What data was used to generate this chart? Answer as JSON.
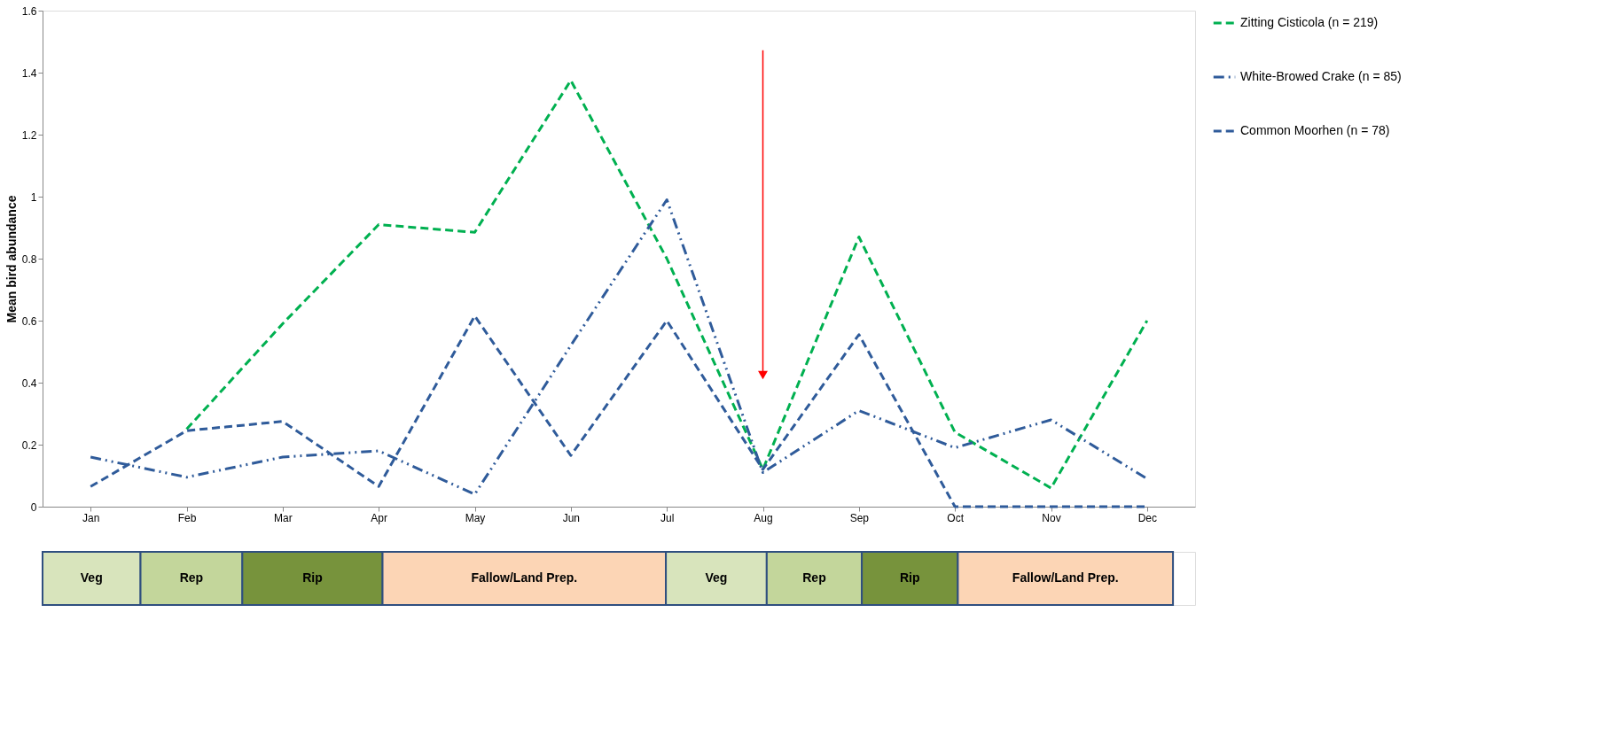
{
  "chart_data": {
    "type": "line",
    "ylabel": "Mean bird abundance",
    "categories": [
      "Jan",
      "Feb",
      "Mar",
      "Apr",
      "May",
      "Jun",
      "Jul",
      "Aug",
      "Sep",
      "Oct",
      "Nov",
      "Dec"
    ],
    "series": [
      {
        "name": "Zitting Cisticola (n = 219)",
        "color": "#00b050",
        "line_style": "dashed",
        "values": [
          null,
          0.25,
          0.59,
          0.91,
          0.885,
          1.375,
          0.8,
          0.12,
          0.87,
          0.24,
          0.06,
          0.6
        ]
      },
      {
        "name": "White-Browed Crake (n = 85)",
        "color": "#2f5b9a",
        "line_style": "dashdot",
        "values": [
          0.16,
          0.095,
          0.16,
          0.18,
          0.04,
          0.52,
          0.99,
          0.11,
          0.31,
          0.19,
          0.28,
          0.09
        ]
      },
      {
        "name": "Common Moorhen (n = 78)",
        "color": "#2f5b9a",
        "line_style": "dashed",
        "values": [
          0.065,
          0.245,
          0.275,
          0.065,
          0.615,
          0.165,
          0.6,
          0.12,
          0.555,
          0,
          0,
          0
        ]
      }
    ],
    "ylim": [
      0,
      1.6
    ],
    "yticks": [
      0,
      0.2,
      0.4,
      0.6,
      0.8,
      1,
      1.2,
      1.4,
      1.6
    ],
    "grid": false,
    "legend": "top right",
    "marker": "none",
    "annotations": [
      "Veg",
      "Rep",
      "Rip",
      "Fallow/Land Prep.",
      "Veg",
      "Rep",
      "Rip",
      "Fallow/Land Prep."
    ]
  }
}
